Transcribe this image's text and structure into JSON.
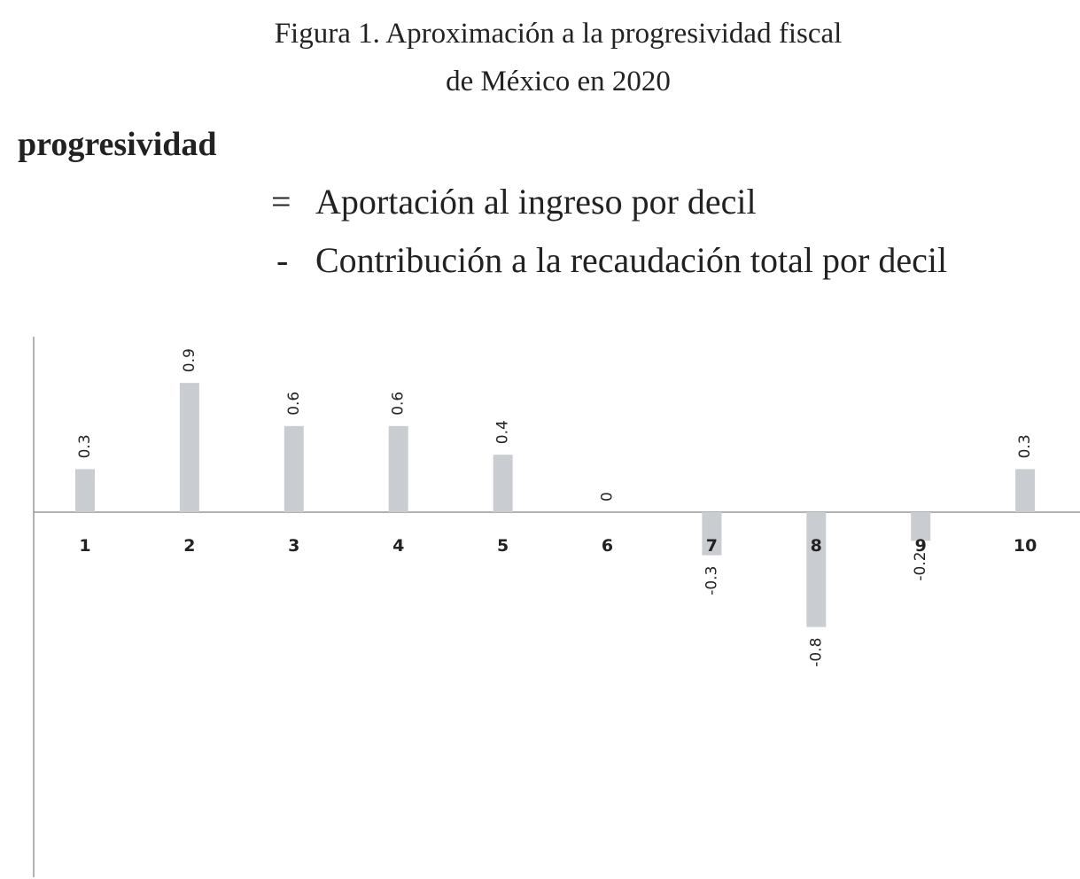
{
  "chart_data": {
    "type": "bar",
    "title": [
      "Figura 1. Aproximación a la progresividad fiscal",
      "de México en 2020"
    ],
    "formula": {
      "lhs": "progresividad",
      "lines": [
        {
          "op": "=",
          "text": "Aportación al ingreso por decil"
        },
        {
          "op": "-",
          "text": "Contribución a la recaudación total por decil"
        }
      ]
    },
    "categories": [
      "1",
      "2",
      "3",
      "4",
      "5",
      "6",
      "7",
      "8",
      "9",
      "10"
    ],
    "values": [
      0.3,
      0.9,
      0.6,
      0.6,
      0.4,
      0,
      -0.3,
      -0.8,
      -0.2,
      0.3
    ],
    "color": "#c9ccd1"
  }
}
